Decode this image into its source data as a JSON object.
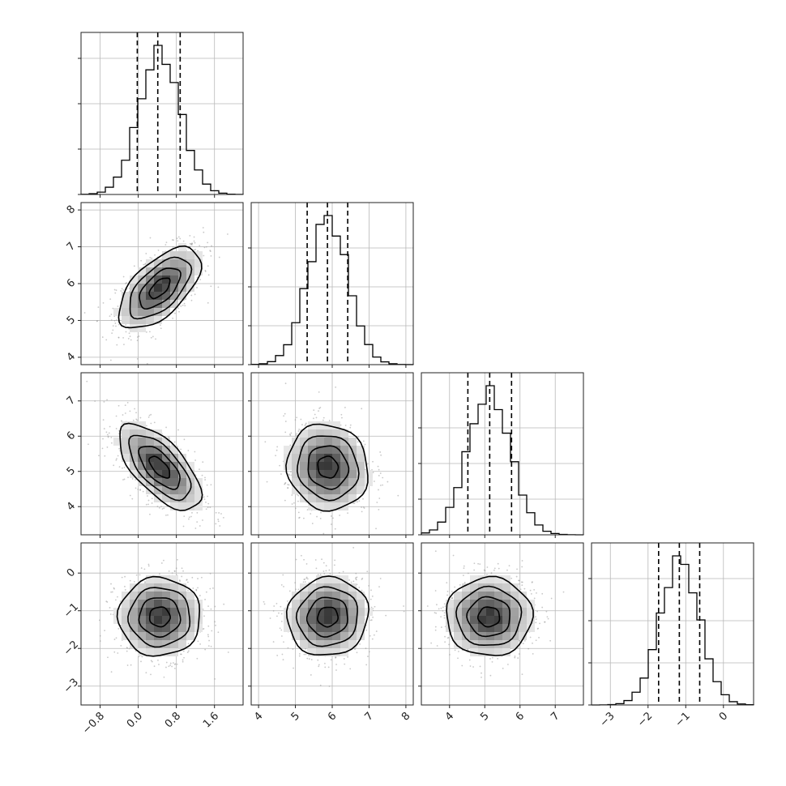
{
  "chart_data": {
    "type": "corner",
    "title": "",
    "grid": true,
    "colors": {
      "hist": "#000000",
      "contour": "#000000",
      "points": "#9a9a9a",
      "density_max": "#000000",
      "density_min": "#ffffff",
      "grid": "#b8b8b8"
    },
    "parameters": [
      {
        "label": "",
        "range": [
          -1.2,
          2.2
        ],
        "mean": 0.45,
        "sd": 0.43,
        "quantiles": [
          -0.02,
          0.41,
          0.88
        ],
        "ticks": [
          -0.8,
          0.0,
          0.8,
          1.6
        ],
        "tick_labels": [
          "−0.8",
          "0.0",
          "0.8",
          "1.6"
        ],
        "hist_ticks": [
          0.0,
          0.28,
          0.56,
          0.84
        ]
      },
      {
        "label": "",
        "range": [
          3.8,
          8.2
        ],
        "mean": 5.88,
        "sd": 0.55,
        "quantiles": [
          5.32,
          5.87,
          6.42
        ],
        "ticks": [
          4,
          5,
          6,
          7,
          8
        ],
        "tick_labels": [
          "4",
          "5",
          "6",
          "7",
          "8"
        ],
        "hist_ticks": [
          0.0,
          0.24,
          0.48,
          0.72
        ]
      },
      {
        "label": "",
        "range": [
          3.2,
          7.8
        ],
        "mean": 5.12,
        "sd": 0.61,
        "quantiles": [
          4.52,
          5.14,
          5.76
        ],
        "ticks": [
          4,
          5,
          6,
          7
        ],
        "tick_labels": [
          "4",
          "5",
          "6",
          "7"
        ],
        "hist_ticks": [
          0.0,
          0.22,
          0.44,
          0.66
        ]
      },
      {
        "label": "",
        "range": [
          -3.5,
          0.8
        ],
        "mean": -1.16,
        "sd": 0.52,
        "quantiles": [
          -1.72,
          -1.17,
          -0.63
        ],
        "ticks": [
          -3,
          -2,
          -1,
          0
        ],
        "tick_labels": [
          "−3",
          "−2",
          "−1",
          "0"
        ],
        "hist_ticks": [
          0.0,
          0.26,
          0.52,
          0.78
        ]
      }
    ],
    "correlations": [
      [
        1.0,
        0.6,
        -0.65,
        0.0
      ],
      [
        0.6,
        1.0,
        -0.08,
        0.05
      ],
      [
        -0.65,
        -0.08,
        1.0,
        0.0
      ],
      [
        0.0,
        0.05,
        0.0,
        1.0
      ]
    ],
    "histogram_bins": 20,
    "contour_levels": [
      0.118,
      0.393,
      0.675,
      0.865
    ]
  }
}
